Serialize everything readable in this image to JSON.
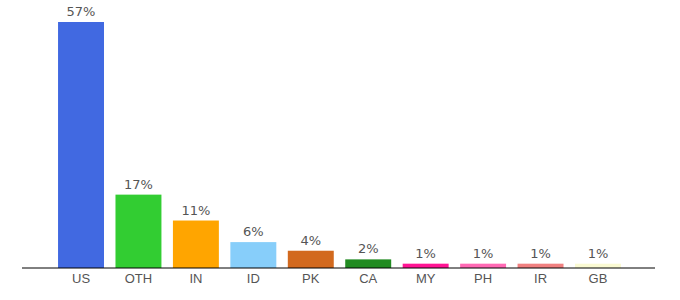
{
  "chart_data": {
    "type": "bar",
    "categories": [
      "US",
      "OTH",
      "IN",
      "ID",
      "PK",
      "CA",
      "MY",
      "PH",
      "IR",
      "GB"
    ],
    "values": [
      57,
      17,
      11,
      6,
      4,
      2,
      1,
      1,
      1,
      1
    ],
    "value_labels": [
      "57%",
      "17%",
      "11%",
      "6%",
      "4%",
      "2%",
      "1%",
      "1%",
      "1%",
      "1%"
    ],
    "colors": [
      "#4169e1",
      "#32cd32",
      "#ffa500",
      "#87cefa",
      "#d2691e",
      "#228b22",
      "#ff1493",
      "#ff69b4",
      "#f08080",
      "#fafad2"
    ],
    "data_labels": true,
    "tick_labels": "x"
  }
}
